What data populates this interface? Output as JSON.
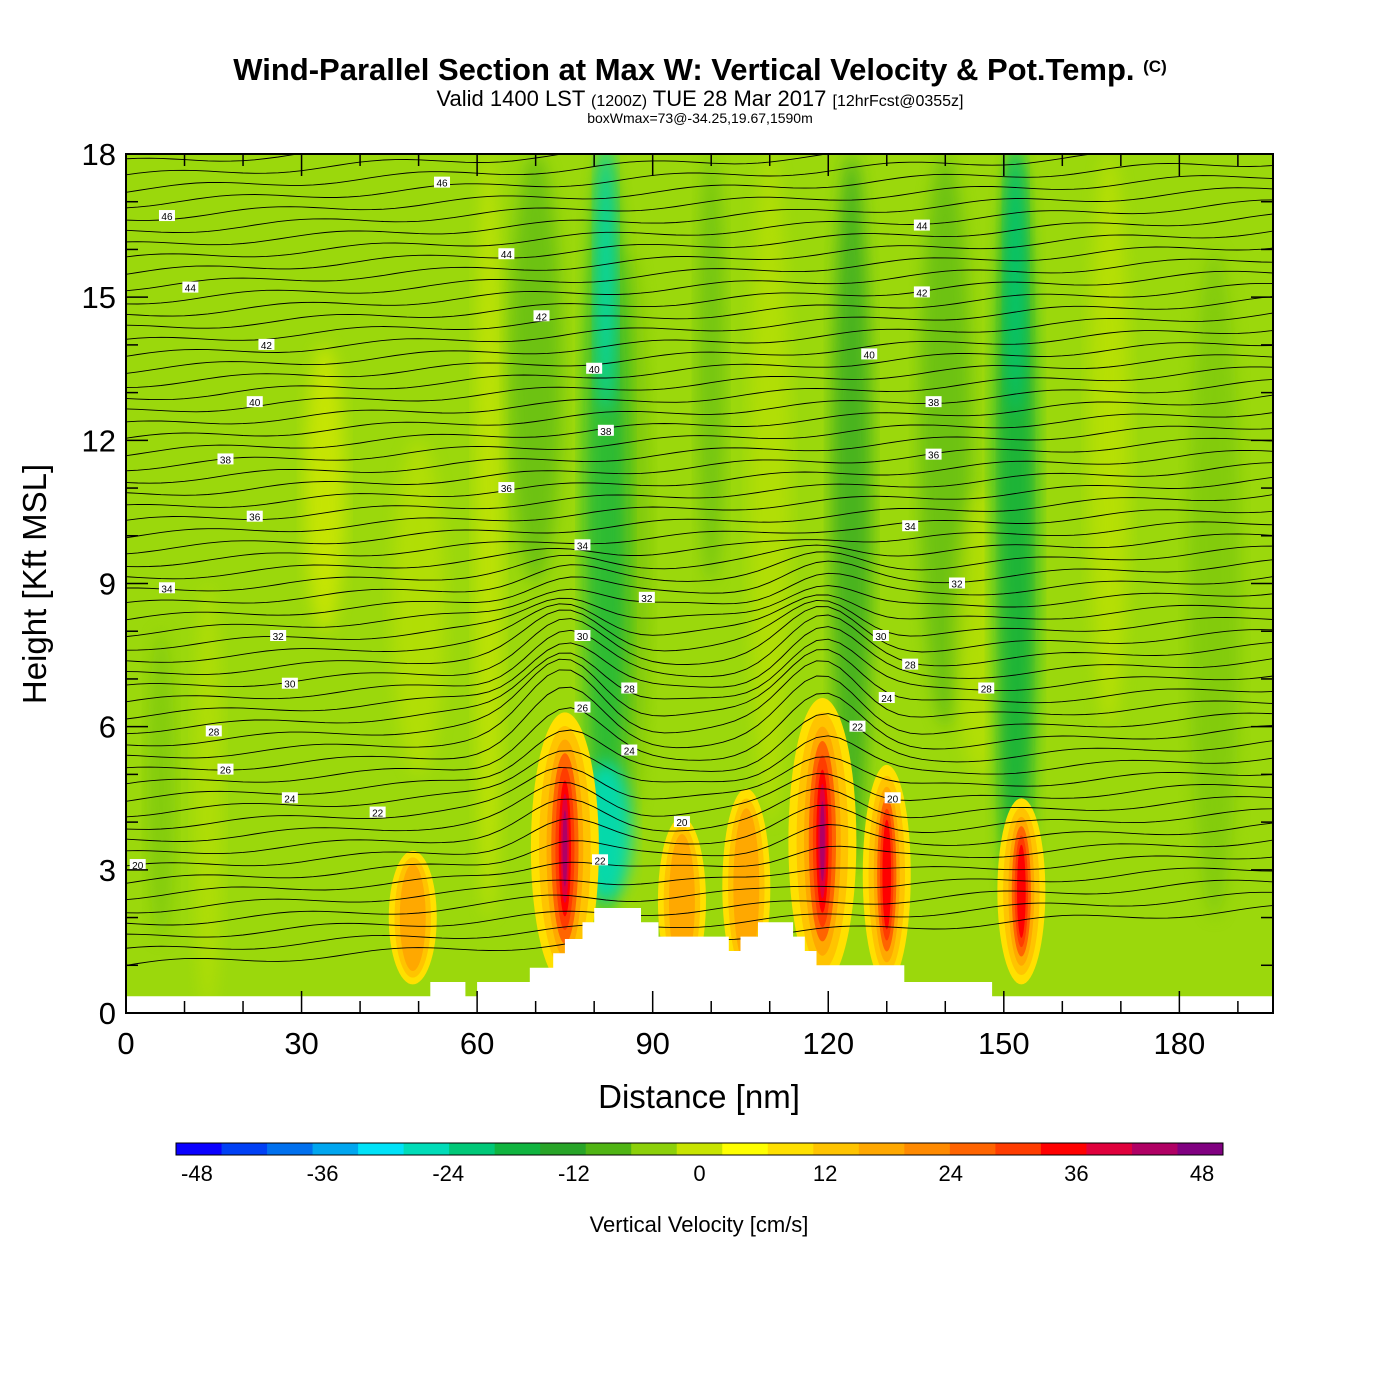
{
  "header": {
    "title": "Wind-Parallel Section at Max W: Vertical Velocity & Pot.Temp.",
    "copyright": "(C)",
    "valid_prefix": "Valid 1400 LST",
    "valid_utc": "(1200Z)",
    "valid_date": "TUE 28 Mar 2017",
    "forecast": "[12hrFcst@0355z]",
    "boxwmax": "boxWmax=73@-34.25,19.67,1590m"
  },
  "chart_data": {
    "type": "heatmap",
    "title": "Wind-Parallel Section at Max W: Vertical Velocity & Pot.Temp.",
    "xlabel": "Distance [nm]",
    "ylabel": "Height [Kft MSL]",
    "xlim": [
      0,
      196
    ],
    "ylim": [
      0,
      18
    ],
    "xticks": [
      0,
      30,
      60,
      90,
      120,
      150,
      180
    ],
    "yticks": [
      0,
      3,
      6,
      9,
      12,
      15,
      18
    ],
    "colorbar": {
      "label": "Vertical Velocity [cm/s]",
      "ticks": [
        -48,
        -36,
        -24,
        -12,
        0,
        12,
        24,
        36,
        48
      ],
      "range": [
        -50,
        50
      ],
      "colors": [
        "#0a00ff",
        "#0040f5",
        "#0070ee",
        "#00a6ef",
        "#00e2f8",
        "#00dcb8",
        "#00c878",
        "#10b440",
        "#28a428",
        "#50b414",
        "#8cd00a",
        "#c8e400",
        "#ffff00",
        "#ffe000",
        "#ffc400",
        "#ffa800",
        "#ff8a00",
        "#ff6400",
        "#ff3c00",
        "#ff0000",
        "#e0003c",
        "#b00064",
        "#800080"
      ]
    },
    "updrafts": [
      {
        "x": 49,
        "top_kft": 3.4,
        "peak_cms": 22
      },
      {
        "x": 75,
        "top_kft": 6.3,
        "peak_cms": 45
      },
      {
        "x": 95,
        "top_kft": 4.1,
        "peak_cms": 22
      },
      {
        "x": 106,
        "top_kft": 4.7,
        "peak_cms": 18
      },
      {
        "x": 119,
        "top_kft": 6.6,
        "peak_cms": 46
      },
      {
        "x": 130,
        "top_kft": 5.2,
        "peak_cms": 32
      },
      {
        "x": 153,
        "top_kft": 4.5,
        "peak_cms": 30
      }
    ],
    "downdrafts": [
      {
        "x": 82,
        "top_kft": 18.0,
        "peak_cms": -28
      },
      {
        "x": 152,
        "top_kft": 18.0,
        "peak_cms": -20
      }
    ],
    "theta_contour_labels": [
      {
        "v": "46",
        "x": 7,
        "y": 16.7
      },
      {
        "v": "46",
        "x": 54,
        "y": 17.4
      },
      {
        "v": "44",
        "x": 11,
        "y": 15.2
      },
      {
        "v": "44",
        "x": 65,
        "y": 15.9
      },
      {
        "v": "44",
        "x": 136,
        "y": 16.5
      },
      {
        "v": "42",
        "x": 24,
        "y": 14.0
      },
      {
        "v": "42",
        "x": 71,
        "y": 14.6
      },
      {
        "v": "42",
        "x": 136,
        "y": 15.1
      },
      {
        "v": "40",
        "x": 22,
        "y": 12.8
      },
      {
        "v": "40",
        "x": 80,
        "y": 13.5
      },
      {
        "v": "40",
        "x": 127,
        "y": 13.8
      },
      {
        "v": "38",
        "x": 17,
        "y": 11.6
      },
      {
        "v": "38",
        "x": 82,
        "y": 12.2
      },
      {
        "v": "38",
        "x": 138,
        "y": 12.8
      },
      {
        "v": "36",
        "x": 22,
        "y": 10.4
      },
      {
        "v": "36",
        "x": 65,
        "y": 11.0
      },
      {
        "v": "36",
        "x": 138,
        "y": 11.7
      },
      {
        "v": "34",
        "x": 7,
        "y": 8.9
      },
      {
        "v": "34",
        "x": 78,
        "y": 9.8
      },
      {
        "v": "34",
        "x": 134,
        "y": 10.2
      },
      {
        "v": "32",
        "x": 26,
        "y": 7.9
      },
      {
        "v": "32",
        "x": 89,
        "y": 8.7
      },
      {
        "v": "32",
        "x": 142,
        "y": 9.0
      },
      {
        "v": "30",
        "x": 28,
        "y": 6.9
      },
      {
        "v": "30",
        "x": 78,
        "y": 7.9
      },
      {
        "v": "30",
        "x": 129,
        "y": 7.9
      },
      {
        "v": "28",
        "x": 15,
        "y": 5.9
      },
      {
        "v": "28",
        "x": 86,
        "y": 6.8
      },
      {
        "v": "28",
        "x": 134,
        "y": 7.3
      },
      {
        "v": "28",
        "x": 147,
        "y": 6.8
      },
      {
        "v": "26",
        "x": 17,
        "y": 5.1
      },
      {
        "v": "26",
        "x": 78,
        "y": 6.4
      },
      {
        "v": "24",
        "x": 28,
        "y": 4.5
      },
      {
        "v": "24",
        "x": 86,
        "y": 5.5
      },
      {
        "v": "24",
        "x": 130,
        "y": 6.6
      },
      {
        "v": "22",
        "x": 43,
        "y": 4.2
      },
      {
        "v": "22",
        "x": 125,
        "y": 6.0
      },
      {
        "v": "22",
        "x": 81,
        "y": 3.2
      },
      {
        "v": "20",
        "x": 2,
        "y": 3.1
      },
      {
        "v": "20",
        "x": 95,
        "y": 4.0
      },
      {
        "v": "20",
        "x": 131,
        "y": 4.5
      }
    ],
    "terrain_kft": [
      [
        0,
        0.35
      ],
      [
        52,
        0.35
      ],
      [
        52,
        0.65
      ],
      [
        58,
        0.65
      ],
      [
        58,
        0.35
      ],
      [
        60,
        0.35
      ],
      [
        60,
        0.65
      ],
      [
        69,
        0.65
      ],
      [
        69,
        0.95
      ],
      [
        73,
        0.95
      ],
      [
        73,
        1.25
      ],
      [
        75,
        1.25
      ],
      [
        75,
        1.55
      ],
      [
        78,
        1.55
      ],
      [
        78,
        1.9
      ],
      [
        80,
        1.9
      ],
      [
        80,
        2.2
      ],
      [
        88,
        2.2
      ],
      [
        88,
        1.9
      ],
      [
        91,
        1.9
      ],
      [
        91,
        1.6
      ],
      [
        103,
        1.6
      ],
      [
        103,
        1.3
      ],
      [
        105,
        1.3
      ],
      [
        105,
        1.6
      ],
      [
        108,
        1.6
      ],
      [
        108,
        1.9
      ],
      [
        114,
        1.9
      ],
      [
        114,
        1.6
      ],
      [
        116,
        1.6
      ],
      [
        116,
        1.3
      ],
      [
        118,
        1.3
      ],
      [
        118,
        1.0
      ],
      [
        133,
        1.0
      ],
      [
        133,
        0.65
      ],
      [
        148,
        0.65
      ],
      [
        148,
        0.35
      ],
      [
        196,
        0.35
      ]
    ]
  }
}
